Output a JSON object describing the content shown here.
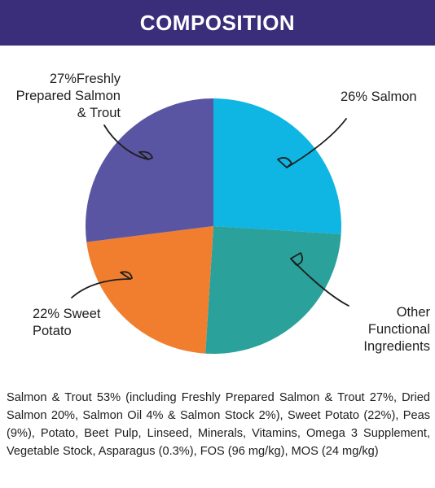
{
  "header": {
    "title": "COMPOSITION"
  },
  "chart_data": {
    "type": "pie",
    "title": "COMPOSITION",
    "slices": [
      {
        "label": "26% Salmon",
        "value": 26,
        "color": "#0fb5e3"
      },
      {
        "label": "Other Functional Ingredients",
        "value": 25,
        "color": "#2aa19b"
      },
      {
        "label": "22% Sweet Potato",
        "value": 22,
        "color": "#f07e2e"
      },
      {
        "label": "27%Freshly Prepared Salmon & Trout",
        "value": 27,
        "color": "#5a55a2"
      }
    ]
  },
  "labels": {
    "salmon": "26% Salmon",
    "other": [
      "Other",
      "Functional",
      "Ingredients"
    ],
    "sweet_potato": [
      "22% Sweet",
      "Potato"
    ],
    "freshly": [
      "27%Freshly",
      "Prepared Salmon",
      "& Trout"
    ]
  },
  "description": "Salmon & Trout 53% (including Freshly Prepared Salmon & Trout 27%, Dried Salmon 20%, Salmon Oil 4% & Salmon Stock 2%), Sweet Potato (22%), Peas (9%), Potato, Beet Pulp, Linseed, Minerals, Vitamins, Omega 3 Supplement, Vegetable Stock, Asparagus (0.3%), FOS (96 mg/kg), MOS (24 mg/kg)"
}
